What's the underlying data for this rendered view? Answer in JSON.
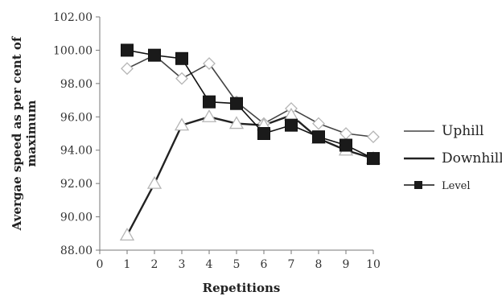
{
  "chart_data": {
    "type": "line",
    "xlabel": "Repetitions",
    "ylabel": "Avergae speed as per cent of maximum",
    "xlim": [
      0,
      10
    ],
    "ylim": [
      88,
      102
    ],
    "x_ticks": [
      "0",
      "1",
      "2",
      "3",
      "4",
      "5",
      "6",
      "7",
      "8",
      "9",
      "10"
    ],
    "y_ticks": [
      "88.00",
      "90.00",
      "92.00",
      "94.00",
      "96.00",
      "98.00",
      "100.00",
      "102.00"
    ],
    "grid": false,
    "legend_position": "right",
    "x": [
      1,
      2,
      3,
      4,
      5,
      6,
      7,
      8,
      9,
      10
    ],
    "series": [
      {
        "name": "Uphill",
        "marker": "diamond",
        "color": "#444444",
        "values": [
          98.9,
          99.7,
          98.3,
          99.2,
          96.9,
          95.6,
          96.5,
          95.6,
          95.0,
          94.8
        ]
      },
      {
        "name": "Downhill",
        "marker": "triangle",
        "color": "#222222",
        "values": [
          88.9,
          92.0,
          95.5,
          96.0,
          95.6,
          95.5,
          96.1,
          94.7,
          94.0,
          93.5
        ]
      },
      {
        "name": "Level",
        "marker": "square",
        "color": "#111111",
        "values": [
          100.0,
          99.7,
          99.5,
          96.9,
          96.8,
          95.0,
          95.5,
          94.8,
          94.3,
          93.5
        ]
      }
    ]
  }
}
